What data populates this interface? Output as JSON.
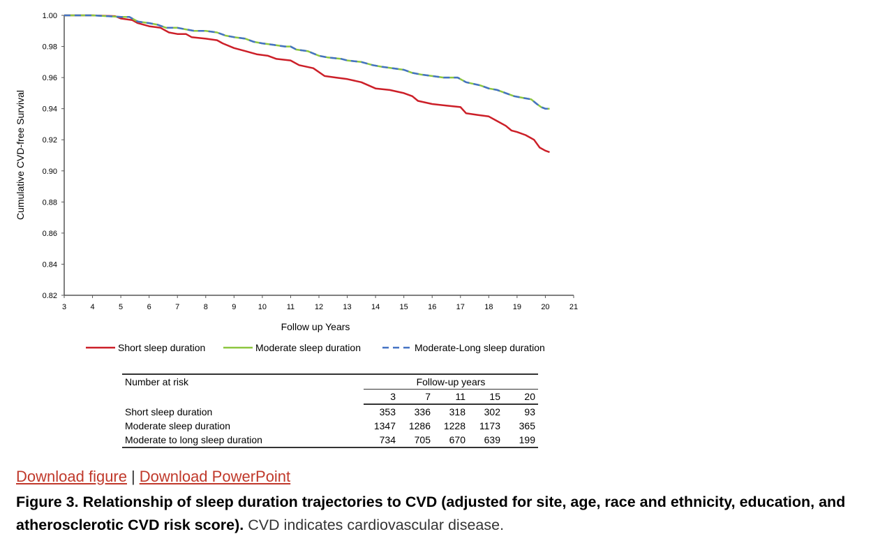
{
  "chart_data": {
    "type": "line",
    "title": "",
    "xlabel": "Follow up Years",
    "ylabel": "Cumulative CVD-free Survival",
    "xlim": [
      3,
      21
    ],
    "ylim": [
      0.82,
      1.0
    ],
    "xticks": [
      "3",
      "4",
      "5",
      "6",
      "7",
      "8",
      "9",
      "10",
      "11",
      "12",
      "13",
      "14",
      "15",
      "16",
      "17",
      "18",
      "19",
      "20",
      "21"
    ],
    "yticks": [
      "0.82",
      "0.84",
      "0.86",
      "0.88",
      "0.90",
      "0.92",
      "0.94",
      "0.96",
      "0.98",
      "1.00"
    ],
    "legend_position": "bottom",
    "series": [
      {
        "name": "Short sleep duration",
        "color": "#cc1f28",
        "style": "solid",
        "points": [
          [
            3,
            1.0
          ],
          [
            4,
            1.0
          ],
          [
            4.8,
            0.9995
          ],
          [
            5,
            0.998
          ],
          [
            5.4,
            0.997
          ],
          [
            5.6,
            0.995
          ],
          [
            6,
            0.993
          ],
          [
            6.4,
            0.992
          ],
          [
            6.7,
            0.989
          ],
          [
            7,
            0.988
          ],
          [
            7.3,
            0.988
          ],
          [
            7.5,
            0.986
          ],
          [
            8,
            0.985
          ],
          [
            8.4,
            0.984
          ],
          [
            8.6,
            0.982
          ],
          [
            9,
            0.979
          ],
          [
            9.4,
            0.977
          ],
          [
            9.8,
            0.975
          ],
          [
            10.2,
            0.974
          ],
          [
            10.5,
            0.972
          ],
          [
            11,
            0.971
          ],
          [
            11.3,
            0.968
          ],
          [
            11.8,
            0.966
          ],
          [
            12.2,
            0.961
          ],
          [
            12.6,
            0.96
          ],
          [
            13,
            0.959
          ],
          [
            13.5,
            0.957
          ],
          [
            14,
            0.953
          ],
          [
            14.5,
            0.952
          ],
          [
            15,
            0.95
          ],
          [
            15.3,
            0.948
          ],
          [
            15.5,
            0.945
          ],
          [
            16,
            0.943
          ],
          [
            16.5,
            0.942
          ],
          [
            17,
            0.941
          ],
          [
            17.2,
            0.937
          ],
          [
            17.6,
            0.936
          ],
          [
            18,
            0.935
          ],
          [
            18.3,
            0.932
          ],
          [
            18.6,
            0.929
          ],
          [
            18.8,
            0.926
          ],
          [
            19,
            0.925
          ],
          [
            19.3,
            0.923
          ],
          [
            19.6,
            0.92
          ],
          [
            19.8,
            0.915
          ],
          [
            20,
            0.913
          ],
          [
            20.15,
            0.912
          ]
        ]
      },
      {
        "name": "Moderate sleep duration",
        "color": "#8cc63f",
        "style": "solid",
        "points": [
          [
            3,
            1.0
          ],
          [
            4,
            1.0
          ],
          [
            5,
            0.999
          ],
          [
            5.3,
            0.999
          ],
          [
            5.6,
            0.996
          ],
          [
            6,
            0.995
          ],
          [
            6.3,
            0.994
          ],
          [
            6.6,
            0.992
          ],
          [
            7,
            0.992
          ],
          [
            7.3,
            0.991
          ],
          [
            7.6,
            0.99
          ],
          [
            8,
            0.99
          ],
          [
            8.4,
            0.989
          ],
          [
            8.7,
            0.987
          ],
          [
            9,
            0.986
          ],
          [
            9.4,
            0.985
          ],
          [
            9.7,
            0.983
          ],
          [
            10,
            0.982
          ],
          [
            10.4,
            0.981
          ],
          [
            10.8,
            0.98
          ],
          [
            11,
            0.98
          ],
          [
            11.2,
            0.978
          ],
          [
            11.6,
            0.977
          ],
          [
            12,
            0.974
          ],
          [
            12.3,
            0.973
          ],
          [
            12.8,
            0.972
          ],
          [
            13,
            0.971
          ],
          [
            13.5,
            0.97
          ],
          [
            13.9,
            0.968
          ],
          [
            14.2,
            0.967
          ],
          [
            14.6,
            0.966
          ],
          [
            15,
            0.965
          ],
          [
            15.3,
            0.963
          ],
          [
            15.6,
            0.962
          ],
          [
            16,
            0.961
          ],
          [
            16.4,
            0.96
          ],
          [
            16.9,
            0.96
          ],
          [
            17.2,
            0.957
          ],
          [
            17.7,
            0.955
          ],
          [
            18,
            0.953
          ],
          [
            18.3,
            0.952
          ],
          [
            18.6,
            0.95
          ],
          [
            18.9,
            0.948
          ],
          [
            19.2,
            0.947
          ],
          [
            19.5,
            0.946
          ],
          [
            19.7,
            0.943
          ],
          [
            19.85,
            0.941
          ],
          [
            20,
            0.94
          ],
          [
            20.15,
            0.94
          ]
        ]
      },
      {
        "name": "Moderate-Long sleep duration",
        "color": "#4472c4",
        "style": "dashed",
        "points": [
          [
            3,
            1.0
          ],
          [
            4,
            1.0
          ],
          [
            5,
            0.999
          ],
          [
            5.3,
            0.999
          ],
          [
            5.6,
            0.996
          ],
          [
            6,
            0.995
          ],
          [
            6.3,
            0.994
          ],
          [
            6.6,
            0.992
          ],
          [
            7,
            0.992
          ],
          [
            7.3,
            0.991
          ],
          [
            7.6,
            0.99
          ],
          [
            8,
            0.99
          ],
          [
            8.4,
            0.989
          ],
          [
            8.7,
            0.987
          ],
          [
            9,
            0.986
          ],
          [
            9.4,
            0.985
          ],
          [
            9.7,
            0.983
          ],
          [
            10,
            0.982
          ],
          [
            10.4,
            0.981
          ],
          [
            10.8,
            0.98
          ],
          [
            11,
            0.98
          ],
          [
            11.2,
            0.978
          ],
          [
            11.6,
            0.977
          ],
          [
            12,
            0.974
          ],
          [
            12.3,
            0.973
          ],
          [
            12.8,
            0.972
          ],
          [
            13,
            0.971
          ],
          [
            13.5,
            0.97
          ],
          [
            13.9,
            0.968
          ],
          [
            14.2,
            0.967
          ],
          [
            14.6,
            0.966
          ],
          [
            15,
            0.965
          ],
          [
            15.3,
            0.963
          ],
          [
            15.6,
            0.962
          ],
          [
            16,
            0.961
          ],
          [
            16.4,
            0.96
          ],
          [
            16.9,
            0.96
          ],
          [
            17.2,
            0.957
          ],
          [
            17.7,
            0.955
          ],
          [
            18,
            0.953
          ],
          [
            18.3,
            0.952
          ],
          [
            18.6,
            0.95
          ],
          [
            18.9,
            0.948
          ],
          [
            19.2,
            0.947
          ],
          [
            19.5,
            0.946
          ],
          [
            19.7,
            0.943
          ],
          [
            19.85,
            0.941
          ],
          [
            20,
            0.94
          ],
          [
            20.15,
            0.94
          ]
        ]
      }
    ]
  },
  "risk_table": {
    "label": "Number at risk",
    "group_header": "Follow-up years",
    "years": [
      "3",
      "7",
      "11",
      "15",
      "20"
    ],
    "rows": [
      {
        "name": "Short sleep duration",
        "values": [
          "353",
          "336",
          "318",
          "302",
          "93"
        ]
      },
      {
        "name": "Moderate sleep duration",
        "values": [
          "1347",
          "1286",
          "1228",
          "1173",
          "365"
        ]
      },
      {
        "name": "Moderate to long sleep duration",
        "values": [
          "734",
          "705",
          "670",
          "639",
          "199"
        ]
      }
    ]
  },
  "links": {
    "download_figure": "Download figure",
    "separator": "|",
    "download_powerpoint": "Download PowerPoint",
    "color": "#c0392b"
  },
  "caption": {
    "bold": "Figure 3. Relationship of sleep duration trajectories to CVD (adjusted for site, age, race and ethnicity, education, and atherosclerotic CVD risk score).",
    "normal": " CVD indicates cardiovascular disease."
  }
}
